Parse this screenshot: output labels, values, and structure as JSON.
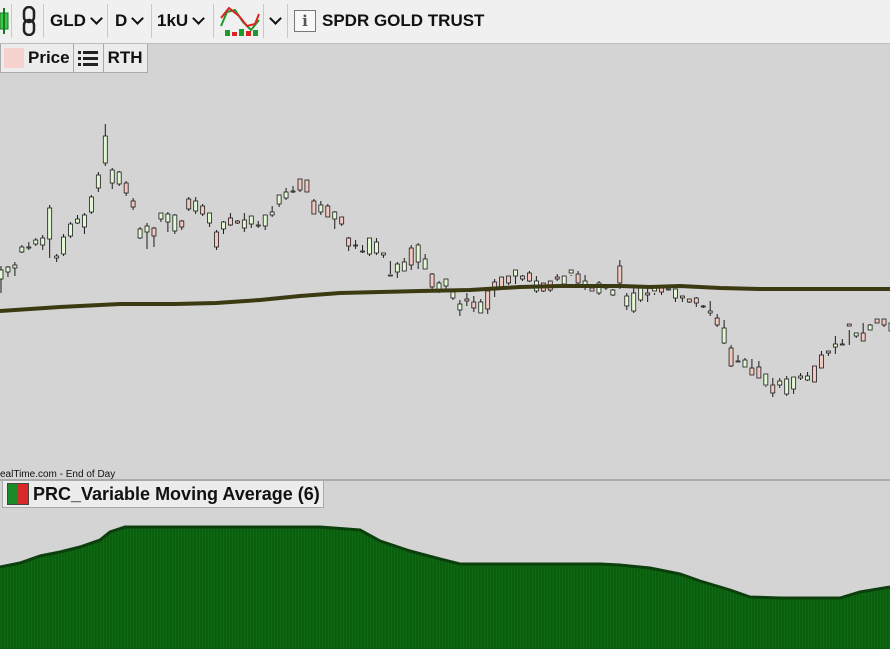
{
  "toolbar": {
    "symbol": "GLD",
    "interval": "D",
    "bar_count": "1kU",
    "info_icon": "i",
    "instrument_name": "SPDR GOLD TRUST"
  },
  "subbar": {
    "price_label": "Price",
    "session_label": "RTH"
  },
  "source_text": "ealTime.com - End of Day",
  "indicator": {
    "title": "PRC_Variable Moving Average (6)"
  },
  "colors": {
    "background": "#d4d4d4",
    "up_candle": "#e2f7d4",
    "down_candle": "#f2c8c0",
    "candle_outline": "#1a1a1a",
    "moving_average": "#3b3a12",
    "histogram": "#0e6b12",
    "histogram_edge": "#084a0a"
  },
  "chart_data": {
    "type": "candlestick",
    "candles": [
      [
        279,
        270,
        293,
        266
      ],
      [
        272,
        267,
        277,
        266
      ],
      [
        268,
        265,
        276,
        262
      ],
      [
        252,
        247,
        253,
        245
      ],
      [
        248,
        247,
        250,
        242
      ],
      [
        244,
        240,
        246,
        238
      ],
      [
        245,
        238,
        250,
        235
      ],
      [
        239,
        208,
        258,
        205
      ],
      [
        258,
        256,
        262,
        254
      ],
      [
        254,
        237,
        256,
        234
      ],
      [
        236,
        224,
        238,
        222
      ],
      [
        223,
        219,
        224,
        215
      ],
      [
        227,
        215,
        234,
        213
      ],
      [
        212,
        197,
        214,
        195
      ],
      [
        188,
        175,
        192,
        172
      ],
      [
        163,
        136,
        166,
        124
      ],
      [
        183,
        170,
        189,
        168
      ],
      [
        184,
        172,
        186,
        171
      ],
      [
        183,
        193,
        196,
        181
      ],
      [
        201,
        207,
        210,
        198
      ],
      [
        238,
        229,
        239,
        227
      ],
      [
        232,
        226,
        249,
        223
      ],
      [
        228,
        236,
        247,
        227
      ],
      [
        219,
        213,
        222,
        213
      ],
      [
        222,
        214,
        232,
        212
      ],
      [
        231,
        215,
        234,
        214
      ],
      [
        221,
        227,
        230,
        220
      ],
      [
        199,
        209,
        211,
        197
      ],
      [
        211,
        201,
        214,
        197
      ],
      [
        206,
        214,
        216,
        204
      ],
      [
        223,
        213,
        227,
        219
      ],
      [
        232,
        247,
        250,
        230
      ],
      [
        229,
        222,
        234,
        221
      ],
      [
        218,
        225,
        226,
        213
      ],
      [
        221,
        223,
        224,
        220
      ],
      [
        228,
        220,
        232,
        213
      ],
      [
        224,
        216,
        228,
        216
      ],
      [
        226,
        225,
        228,
        221
      ],
      [
        226,
        215,
        230,
        220
      ],
      [
        215,
        212,
        217,
        206
      ],
      [
        204,
        195,
        207,
        198
      ],
      [
        198,
        192,
        200,
        188
      ],
      [
        192,
        191,
        193,
        186
      ],
      [
        179,
        190,
        192,
        188
      ],
      [
        180,
        192,
        191,
        181
      ],
      [
        201,
        214,
        212,
        199
      ],
      [
        212,
        205,
        215,
        201
      ],
      [
        206,
        217,
        217,
        204
      ],
      [
        219,
        212,
        229,
        211
      ],
      [
        217,
        224,
        226,
        218
      ],
      [
        238,
        246,
        251,
        237
      ],
      [
        245,
        246,
        249,
        240
      ],
      [
        252,
        251,
        253,
        245
      ],
      [
        254,
        238,
        256,
        252
      ],
      [
        253,
        242,
        255,
        238
      ],
      [
        255,
        253,
        258,
        253
      ],
      [
        275,
        275,
        274,
        261
      ],
      [
        272,
        264,
        278,
        262
      ],
      [
        271,
        262,
        269,
        258
      ],
      [
        248,
        265,
        270,
        245
      ],
      [
        262,
        245,
        269,
        243
      ],
      [
        269,
        259,
        269,
        254
      ],
      [
        274,
        287,
        289,
        273
      ],
      [
        290,
        283,
        293,
        281
      ],
      [
        286,
        279,
        292,
        280
      ],
      [
        298,
        292,
        300,
        292
      ],
      [
        310,
        304,
        316,
        300
      ],
      [
        299,
        301,
        306,
        293
      ],
      [
        302,
        308,
        312,
        296
      ],
      [
        313,
        302,
        312,
        299
      ],
      [
        291,
        309,
        314,
        296
      ],
      [
        282,
        290,
        297,
        279
      ],
      [
        277,
        287,
        286,
        278
      ],
      [
        276,
        283,
        285,
        278
      ],
      [
        276,
        270,
        284,
        273
      ],
      [
        276,
        279,
        281,
        275
      ],
      [
        273,
        281,
        282,
        271
      ],
      [
        291,
        281,
        293,
        276
      ],
      [
        283,
        291,
        292,
        286
      ],
      [
        281,
        290,
        292,
        284
      ],
      [
        277,
        279,
        281,
        274
      ],
      [
        284,
        276,
        286,
        276
      ],
      [
        273,
        270,
        276,
        275
      ],
      [
        274,
        283,
        284,
        271
      ],
      [
        286,
        281,
        290,
        275
      ],
      [
        288,
        291,
        290,
        290
      ],
      [
        293,
        283,
        295,
        281
      ],
      [
        287,
        288,
        290,
        284
      ],
      [
        295,
        290,
        296,
        289
      ],
      [
        266,
        283,
        289,
        260
      ],
      [
        306,
        296,
        310,
        293
      ],
      [
        311,
        293,
        313,
        287
      ],
      [
        300,
        287,
        302,
        286
      ],
      [
        293,
        295,
        302,
        288
      ],
      [
        291,
        286,
        295,
        293
      ],
      [
        288,
        292,
        295,
        285
      ],
      [
        289,
        290,
        292,
        292
      ],
      [
        298,
        289,
        302,
        290
      ],
      [
        296,
        298,
        302,
        296
      ],
      [
        299,
        302,
        303,
        299
      ],
      [
        298,
        303,
        307,
        297
      ],
      [
        306,
        306,
        308,
        305
      ],
      [
        313,
        311,
        316,
        301
      ],
      [
        318,
        325,
        327,
        314
      ],
      [
        343,
        328,
        344,
        320
      ],
      [
        348,
        366,
        367,
        345
      ],
      [
        361,
        361,
        362,
        355
      ],
      [
        367,
        360,
        365,
        358
      ],
      [
        368,
        375,
        374,
        359
      ],
      [
        367,
        378,
        378,
        361
      ],
      [
        385,
        374,
        387,
        386
      ],
      [
        385,
        393,
        397,
        378
      ],
      [
        385,
        381,
        388,
        378
      ],
      [
        394,
        379,
        396,
        376
      ],
      [
        389,
        377,
        394,
        378
      ],
      [
        378,
        376,
        380,
        373
      ],
      [
        380,
        376,
        381,
        372
      ],
      [
        366,
        382,
        380,
        368
      ],
      [
        355,
        368,
        366,
        351
      ],
      [
        351,
        353,
        356,
        352
      ],
      [
        347,
        344,
        354,
        336
      ],
      [
        345,
        344,
        345,
        339
      ],
      [
        324,
        326,
        345,
        330
      ],
      [
        336,
        333,
        335,
        338
      ],
      [
        333,
        341,
        336,
        323
      ],
      [
        330,
        325,
        327,
        324
      ],
      [
        319,
        323,
        323,
        323
      ],
      [
        319,
        325,
        327,
        322
      ],
      [
        331,
        323,
        332,
        322
      ],
      [
        334,
        338,
        336,
        332
      ],
      [
        331,
        330,
        334,
        329
      ]
    ],
    "moving_average": [
      [
        0,
        311
      ],
      [
        60,
        307
      ],
      [
        120,
        304
      ],
      [
        175,
        304
      ],
      [
        216,
        303
      ],
      [
        260,
        300
      ],
      [
        300,
        296
      ],
      [
        340,
        293
      ],
      [
        380,
        292
      ],
      [
        420,
        291
      ],
      [
        470,
        290
      ],
      [
        520,
        287
      ],
      [
        560,
        286
      ],
      [
        620,
        286
      ],
      [
        650,
        287
      ],
      [
        680,
        286
      ],
      [
        720,
        288
      ],
      [
        760,
        289
      ],
      [
        800,
        289
      ],
      [
        890,
        289
      ]
    ],
    "histogram_levels": [
      [
        0,
        567
      ],
      [
        20,
        563
      ],
      [
        40,
        556
      ],
      [
        60,
        552
      ],
      [
        80,
        547
      ],
      [
        100,
        540
      ],
      [
        110,
        532
      ],
      [
        125,
        527
      ],
      [
        320,
        527
      ],
      [
        360,
        530
      ],
      [
        380,
        541
      ],
      [
        410,
        551
      ],
      [
        440,
        559
      ],
      [
        460,
        564
      ],
      [
        600,
        564
      ],
      [
        620,
        565
      ],
      [
        650,
        568
      ],
      [
        680,
        574
      ],
      [
        700,
        581
      ],
      [
        730,
        590
      ],
      [
        750,
        597
      ],
      [
        780,
        598
      ],
      [
        840,
        598
      ],
      [
        860,
        592
      ],
      [
        890,
        587
      ]
    ]
  }
}
